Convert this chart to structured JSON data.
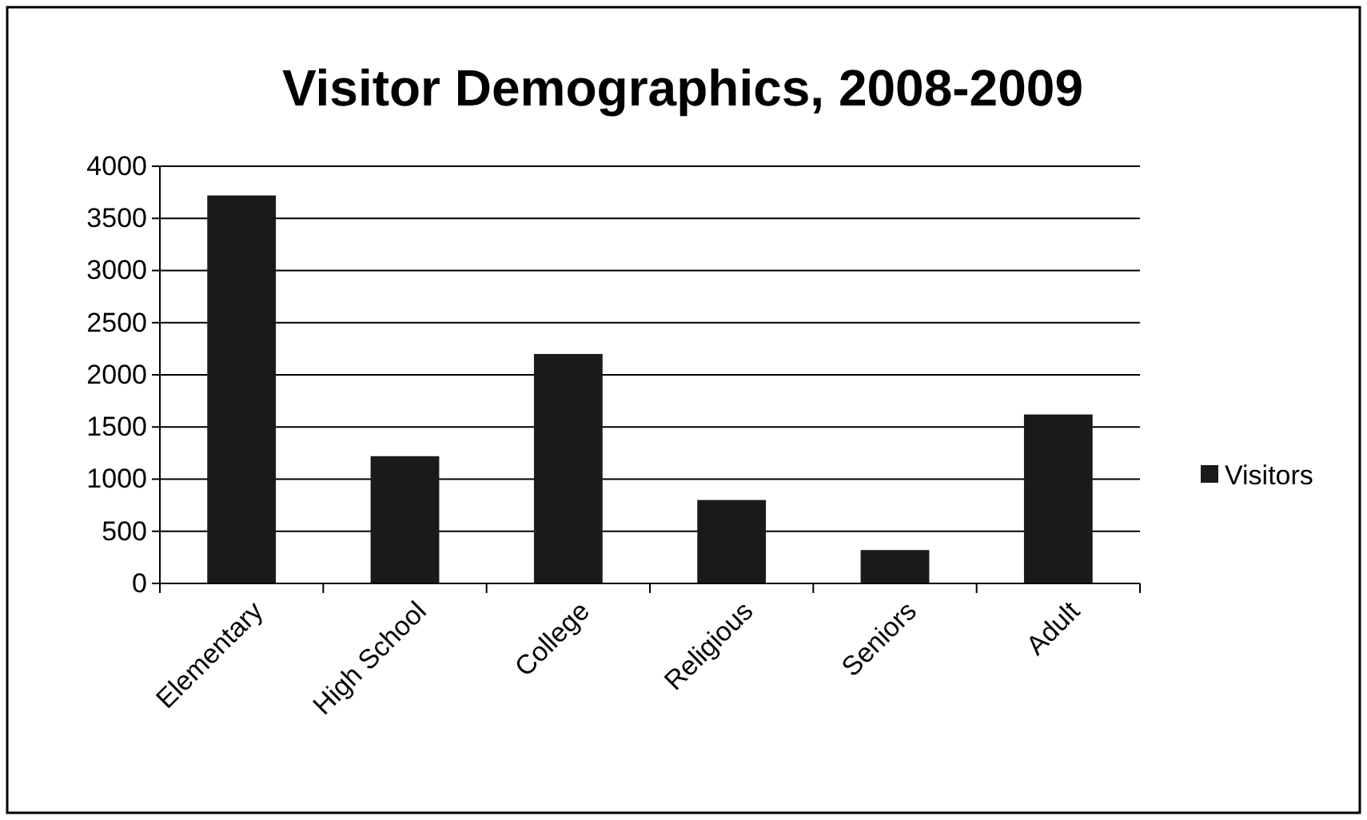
{
  "chart_data": {
    "type": "bar",
    "title": "Visitor Demographics, 2008-2009",
    "categories": [
      "Elementary",
      "High School",
      "College",
      "Religious",
      "Seniors",
      "Adult"
    ],
    "series": [
      {
        "name": "Visitors",
        "color": "#1a1a1a",
        "values": [
          3720,
          1220,
          2200,
          800,
          320,
          1620
        ]
      }
    ],
    "ylim": [
      0,
      4000
    ],
    "yticks": [
      0,
      500,
      1000,
      1500,
      2000,
      2500,
      3000,
      3500,
      4000
    ],
    "grid": "y",
    "legend": "right"
  }
}
